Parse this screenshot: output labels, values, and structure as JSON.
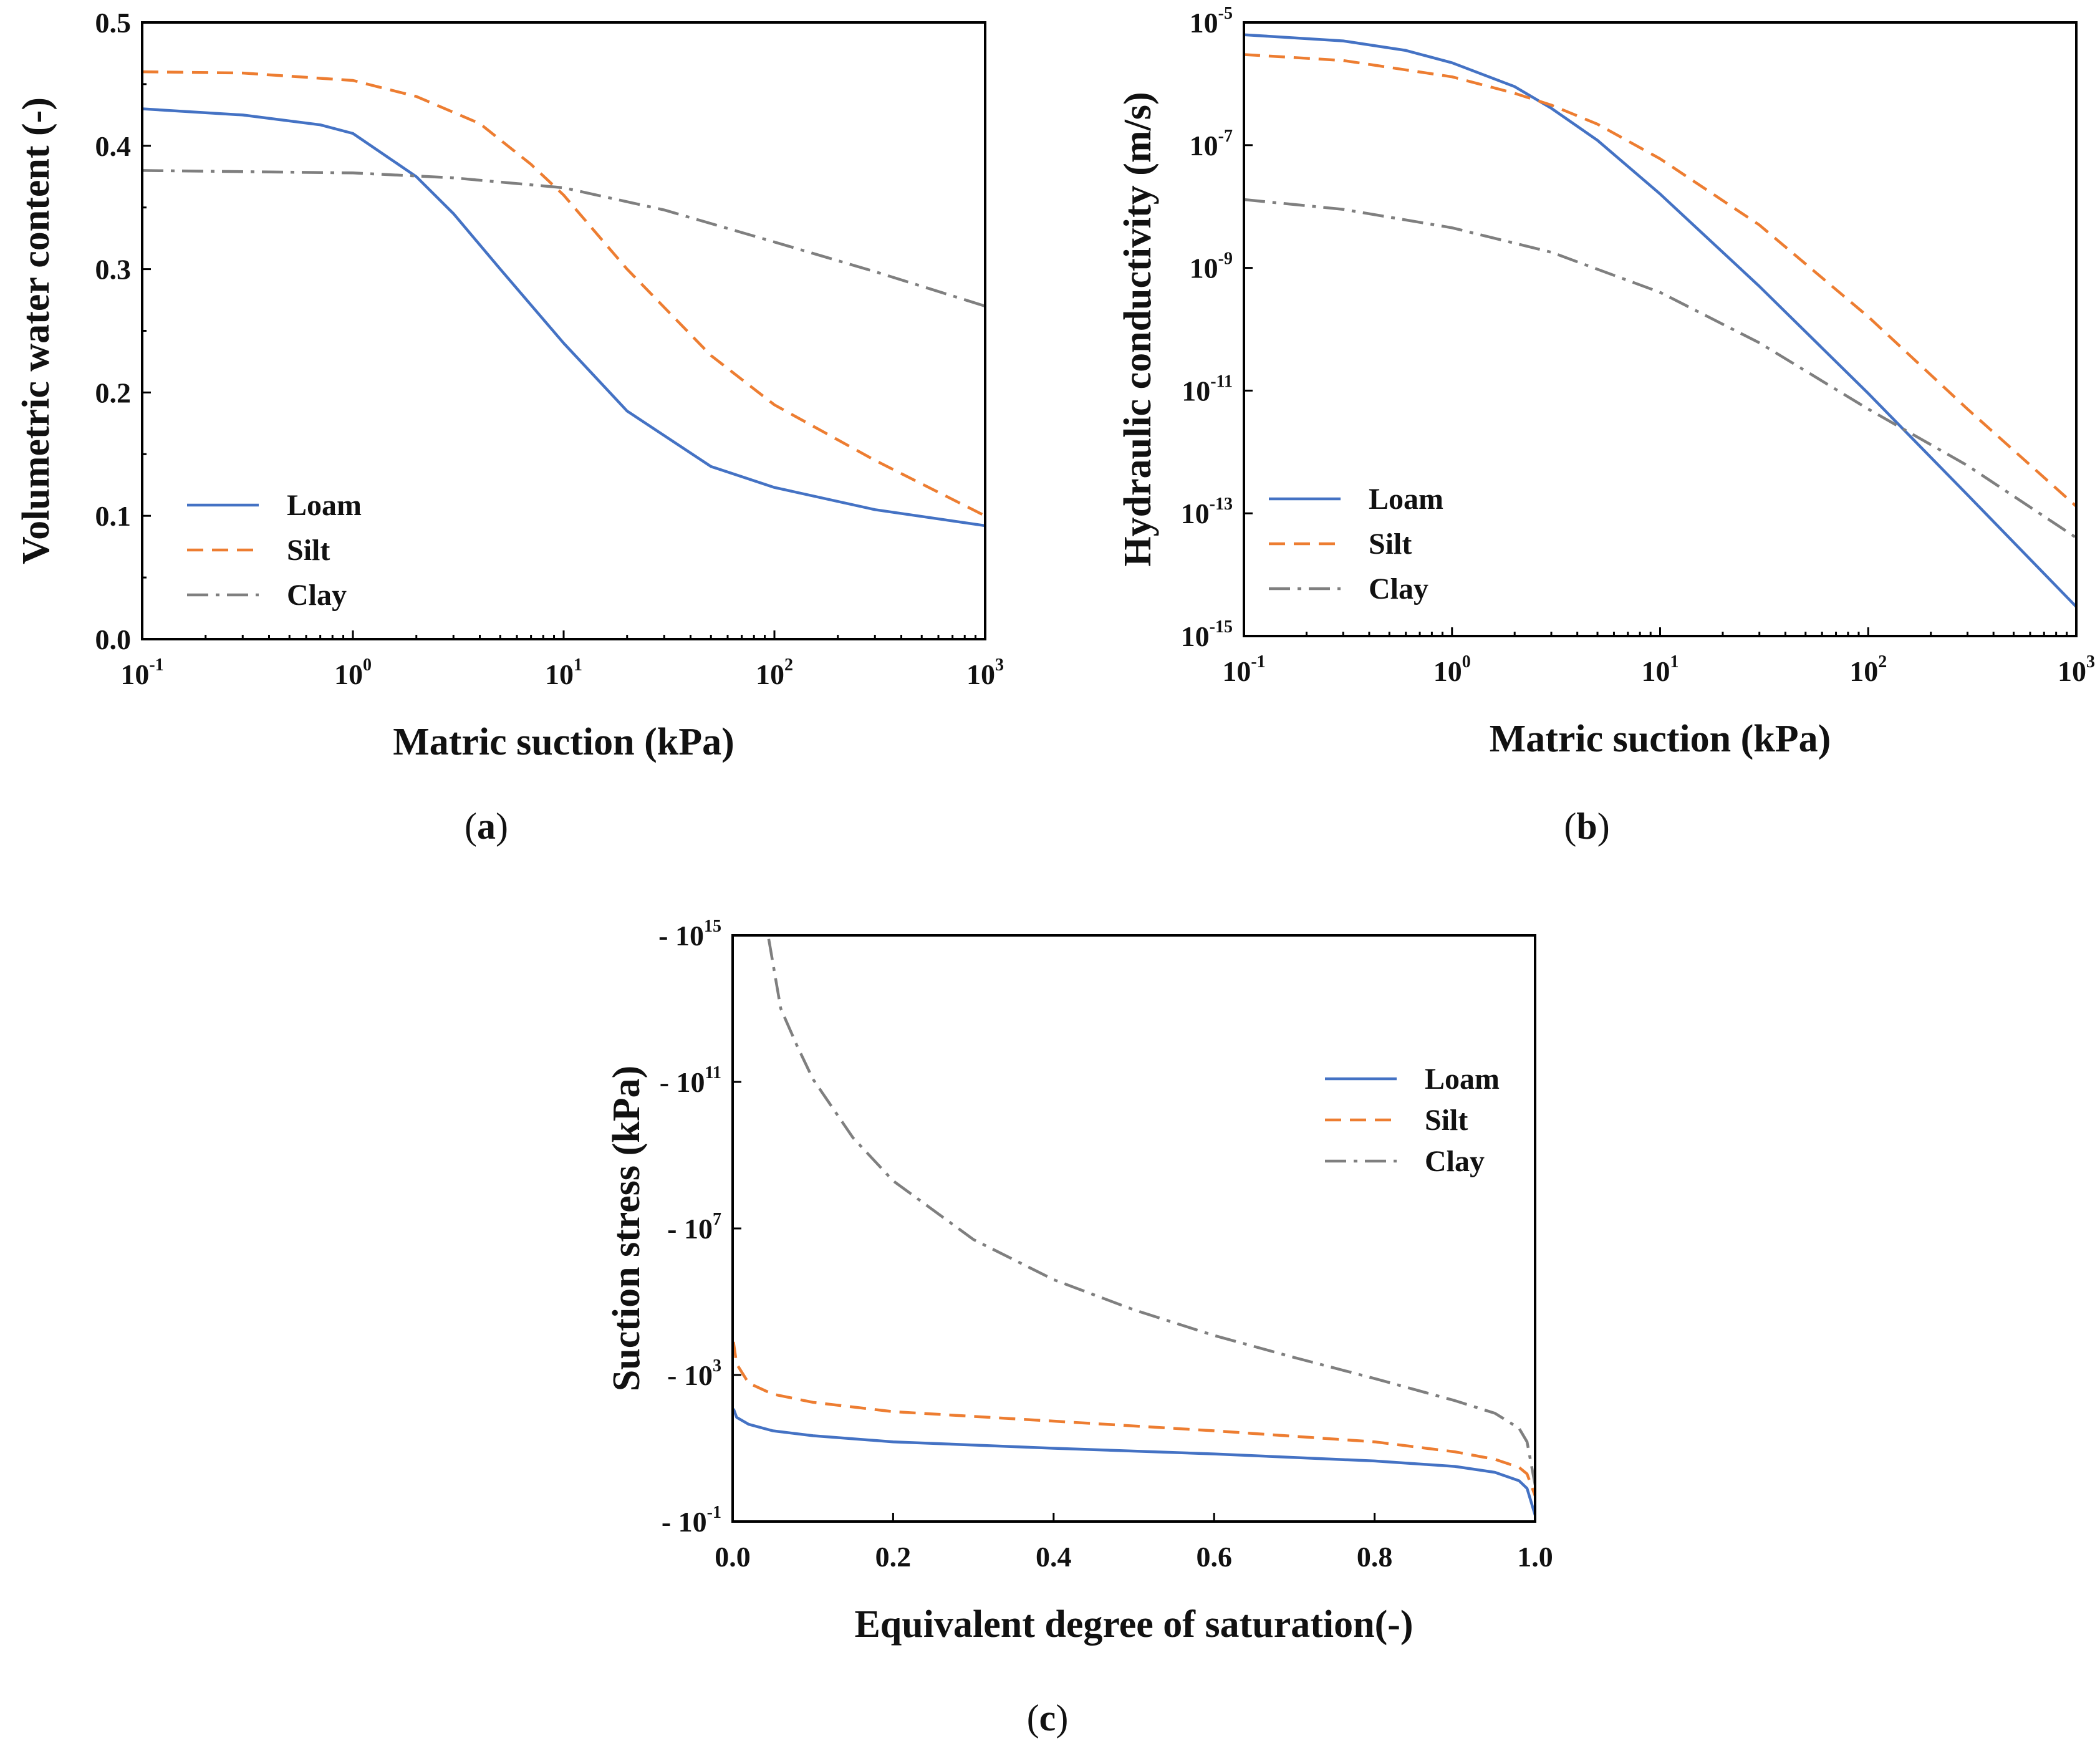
{
  "colors": {
    "loam": "#4472c4",
    "silt": "#ed7d31",
    "clay": "#7f7f7f"
  },
  "chart_data": [
    {
      "id": "a",
      "type": "line",
      "caption": "(a)",
      "caption_letter": "a",
      "xlabel": "Matric suction (kPa)",
      "ylabel": "Volumetric water content (-)",
      "xscale": "log",
      "xlim": [
        0.1,
        1000
      ],
      "ylim": [
        0.0,
        0.5
      ],
      "xticks": [
        {
          "base": "10",
          "exp": "-1"
        },
        {
          "base": "10",
          "exp": "0"
        },
        {
          "base": "10",
          "exp": "1"
        },
        {
          "base": "10",
          "exp": "2"
        },
        {
          "base": "10",
          "exp": "3"
        }
      ],
      "yticks": [
        "0.0",
        "0.1",
        "0.2",
        "0.3",
        "0.4",
        "0.5"
      ],
      "legend_position": "bottom-left",
      "series": [
        {
          "name": "Loam",
          "style": "solid",
          "x": [
            0.1,
            0.3,
            0.7,
            1,
            2,
            3,
            5,
            10,
            20,
            50,
            100,
            300,
            1000
          ],
          "y": [
            0.43,
            0.425,
            0.417,
            0.41,
            0.375,
            0.345,
            0.3,
            0.24,
            0.185,
            0.14,
            0.123,
            0.105,
            0.092
          ]
        },
        {
          "name": "Silt",
          "style": "dashed",
          "x": [
            0.1,
            0.3,
            1,
            2,
            4,
            7,
            10,
            20,
            50,
            100,
            300,
            1000
          ],
          "y": [
            0.46,
            0.459,
            0.453,
            0.44,
            0.418,
            0.385,
            0.36,
            0.3,
            0.23,
            0.19,
            0.145,
            0.1
          ]
        },
        {
          "name": "Clay",
          "style": "dashdot",
          "x": [
            0.1,
            1,
            3,
            10,
            30,
            100,
            300,
            1000
          ],
          "y": [
            0.38,
            0.378,
            0.374,
            0.366,
            0.348,
            0.322,
            0.298,
            0.27
          ]
        }
      ]
    },
    {
      "id": "b",
      "type": "line",
      "caption": "(b)",
      "caption_letter": "b",
      "xlabel": "Matric suction (kPa)",
      "ylabel": "Hydraulic conductivity (m/s)",
      "xscale": "log",
      "yscale": "log",
      "xlim": [
        0.1,
        1000
      ],
      "ylim": [
        1e-15,
        1e-05
      ],
      "xticks": [
        {
          "base": "10",
          "exp": "-1"
        },
        {
          "base": "10",
          "exp": "0"
        },
        {
          "base": "10",
          "exp": "1"
        },
        {
          "base": "10",
          "exp": "2"
        },
        {
          "base": "10",
          "exp": "3"
        }
      ],
      "yticks": [
        {
          "base": "10",
          "exp": "-15"
        },
        {
          "base": "10",
          "exp": "-13"
        },
        {
          "base": "10",
          "exp": "-11"
        },
        {
          "base": "10",
          "exp": "-9"
        },
        {
          "base": "10",
          "exp": "-7"
        },
        {
          "base": "10",
          "exp": "-5"
        }
      ],
      "legend_position": "bottom-left",
      "series": [
        {
          "name": "Loam",
          "style": "solid",
          "x": [
            0.1,
            0.3,
            0.6,
            1,
            2,
            3,
            5,
            10,
            30,
            100,
            300,
            1000
          ],
          "y": [
            6.3e-06,
            5e-06,
            3.5e-06,
            2.2e-06,
            9e-07,
            4e-07,
            1.2e-07,
            1.6e-08,
            5e-10,
            9e-12,
            2e-13,
            3e-15
          ]
        },
        {
          "name": "Silt",
          "style": "dashed",
          "x": [
            0.1,
            0.3,
            1,
            2,
            3,
            5,
            10,
            30,
            100,
            300,
            1000
          ],
          "y": [
            3e-06,
            2.4e-06,
            1.3e-06,
            7e-07,
            4.5e-07,
            2.2e-07,
            6e-08,
            5e-09,
            1.6e-10,
            5e-12,
            1.3e-13
          ]
        },
        {
          "name": "Clay",
          "style": "dashdot",
          "x": [
            0.1,
            0.3,
            1,
            3,
            10,
            30,
            100,
            300,
            1000
          ],
          "y": [
            1.3e-08,
            9e-09,
            4.5e-09,
            1.8e-09,
            4e-10,
            6e-11,
            5e-12,
            6e-13,
            4e-14
          ]
        }
      ]
    },
    {
      "id": "c",
      "type": "line",
      "caption": "(c)",
      "caption_letter": "c",
      "xlabel": "Equivalent degree of saturation(-)",
      "ylabel": "Suction stress (kPa)",
      "yscale": "log",
      "xlim": [
        0.0,
        1.0
      ],
      "ylim": [
        0.1,
        1000000000000000.0
      ],
      "xticks": [
        "0.0",
        "0.2",
        "0.4",
        "0.6",
        "0.8",
        "1.0"
      ],
      "yticks": [
        {
          "base": "- 10",
          "exp": "-1"
        },
        {
          "base": "- 10",
          "exp": "3"
        },
        {
          "base": "- 10",
          "exp": "7"
        },
        {
          "base": "- 10",
          "exp": "11"
        },
        {
          "base": "- 10",
          "exp": "15"
        }
      ],
      "legend_position": "top-right",
      "series": [
        {
          "name": "Loam",
          "style": "solid",
          "x": [
            0.001,
            0.005,
            0.02,
            0.05,
            0.1,
            0.2,
            0.4,
            0.6,
            0.8,
            0.9,
            0.95,
            0.98,
            0.99,
            1.0
          ],
          "y": [
            120,
            70,
            45,
            30,
            22,
            15,
            10,
            7,
            4.5,
            3.2,
            2.2,
            1.3,
            0.8,
            0.15
          ]
        },
        {
          "name": "Silt",
          "style": "dashed",
          "x": [
            0.001,
            0.005,
            0.02,
            0.05,
            0.1,
            0.2,
            0.4,
            0.6,
            0.8,
            0.9,
            0.95,
            0.98,
            0.99,
            1.0
          ],
          "y": [
            8000,
            2000,
            600,
            300,
            180,
            100,
            55,
            30,
            15,
            8,
            5,
            3,
            2,
            0.5
          ]
        },
        {
          "name": "Clay",
          "style": "dashdot",
          "x": [
            0.045,
            0.06,
            0.08,
            0.1,
            0.15,
            0.2,
            0.3,
            0.4,
            0.5,
            0.6,
            0.7,
            0.8,
            0.9,
            0.95,
            0.98,
            0.99,
            1.0
          ],
          "y": [
            800000000000000.0,
            10000000000000.0,
            1000000000000.0,
            120000000000.0,
            3000000000.0,
            200000000.0,
            5000000.0,
            400000.0,
            60000.0,
            12000.0,
            3000,
            800,
            200,
            90,
            35,
            15,
            1
          ]
        }
      ]
    }
  ]
}
